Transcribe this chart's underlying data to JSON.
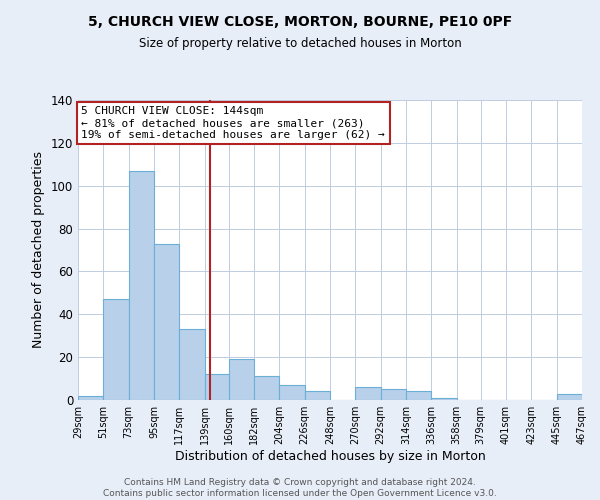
{
  "title1": "5, CHURCH VIEW CLOSE, MORTON, BOURNE, PE10 0PF",
  "title2": "Size of property relative to detached houses in Morton",
  "xlabel": "Distribution of detached houses by size in Morton",
  "ylabel": "Number of detached properties",
  "bar_left_edges": [
    29,
    51,
    73,
    95,
    117,
    139,
    160,
    182,
    204,
    226,
    248,
    270,
    292,
    314,
    336,
    358,
    379,
    401,
    423,
    445
  ],
  "bar_heights": [
    2,
    47,
    107,
    73,
    33,
    12,
    19,
    11,
    7,
    4,
    0,
    6,
    5,
    4,
    1,
    0,
    0,
    0,
    0,
    3
  ],
  "bin_width": 22,
  "bar_color": "#b8d0ea",
  "bar_edge_color": "#6baed6",
  "vline_x": 144,
  "vline_color": "#b22222",
  "annotation_text": "5 CHURCH VIEW CLOSE: 144sqm\n← 81% of detached houses are smaller (263)\n19% of semi-detached houses are larger (62) →",
  "annotation_box_color": "#ffffff",
  "annotation_box_edge_color": "#b22222",
  "ylim": [
    0,
    140
  ],
  "yticks": [
    0,
    20,
    40,
    60,
    80,
    100,
    120,
    140
  ],
  "tick_labels": [
    "29sqm",
    "51sqm",
    "73sqm",
    "95sqm",
    "117sqm",
    "139sqm",
    "160sqm",
    "182sqm",
    "204sqm",
    "226sqm",
    "248sqm",
    "270sqm",
    "292sqm",
    "314sqm",
    "336sqm",
    "358sqm",
    "379sqm",
    "401sqm",
    "423sqm",
    "445sqm",
    "467sqm"
  ],
  "footnote": "Contains HM Land Registry data © Crown copyright and database right 2024.\nContains public sector information licensed under the Open Government Licence v3.0.",
  "bg_color": "#e8eef8",
  "plot_bg_color": "#ffffff",
  "grid_color": "#c0cce0"
}
